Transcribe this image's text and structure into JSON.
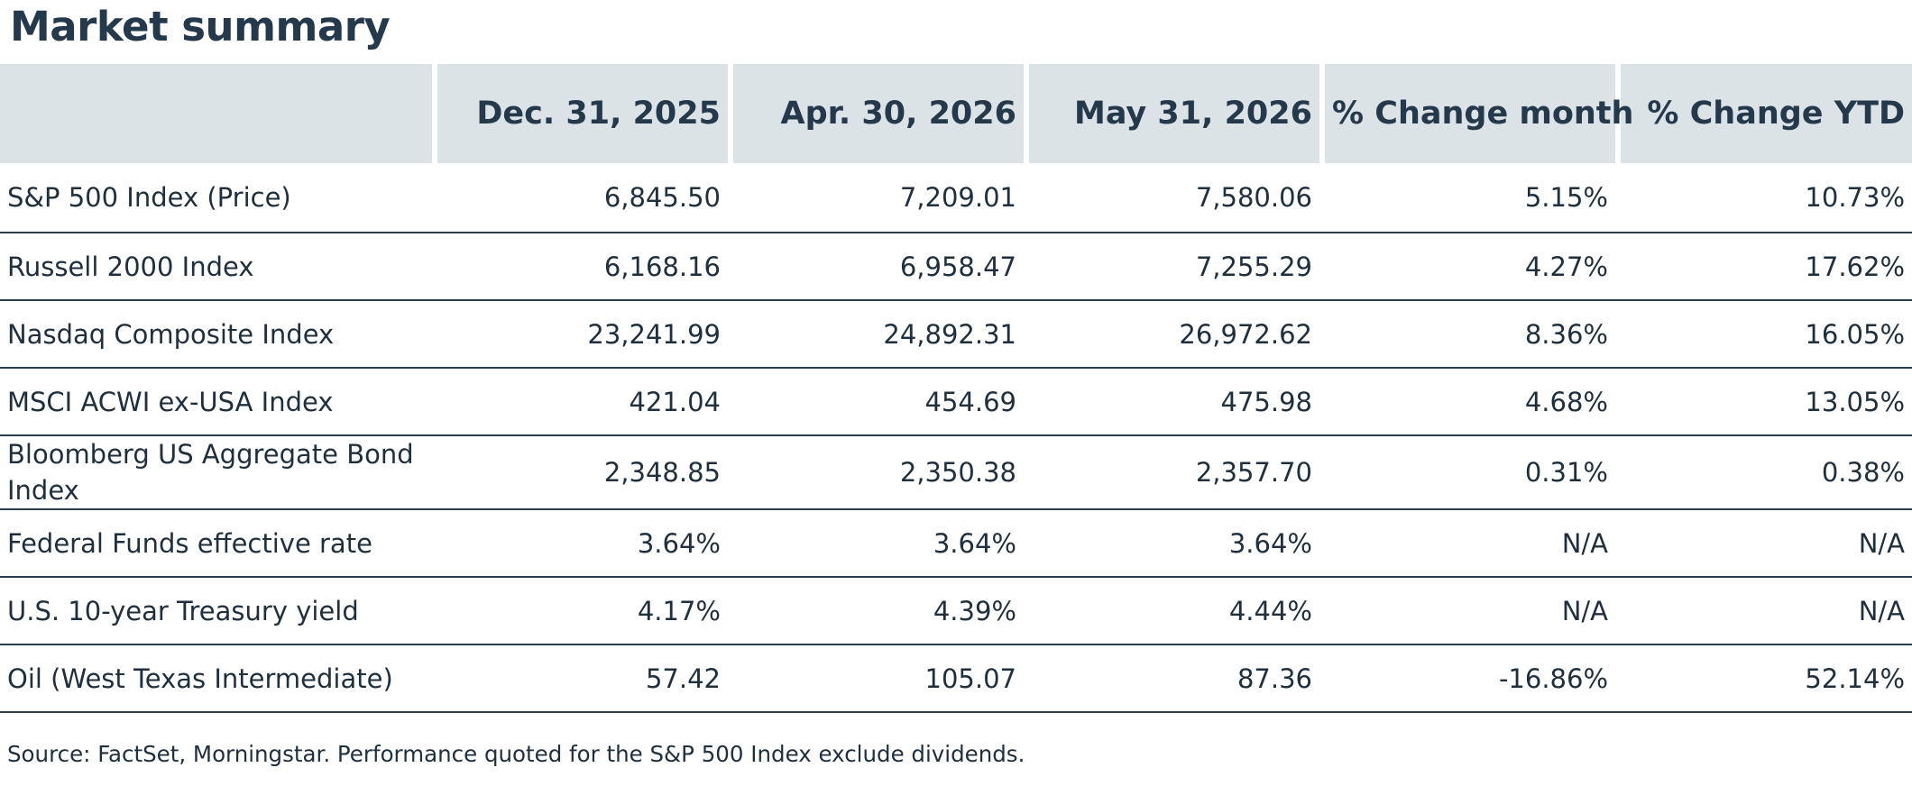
{
  "title": "Market summary",
  "table": {
    "headers": [
      "",
      "Dec. 31, 2025",
      "Apr. 30, 2026",
      "May 31, 2026",
      "% Change month",
      "% Change YTD"
    ],
    "rows": [
      {
        "name": "S&P 500 Index (Price)",
        "values": [
          "6,845.50",
          "7,209.01",
          "7,580.06",
          "5.15%",
          "10.73%"
        ]
      },
      {
        "name": "Russell 2000 Index",
        "values": [
          "6,168.16",
          "6,958.47",
          "7,255.29",
          "4.27%",
          "17.62%"
        ]
      },
      {
        "name": "Nasdaq Composite Index",
        "values": [
          "23,241.99",
          "24,892.31",
          "26,972.62",
          "8.36%",
          "16.05%"
        ]
      },
      {
        "name": "MSCI ACWI ex-USA Index",
        "values": [
          "421.04",
          "454.69",
          "475.98",
          "4.68%",
          "13.05%"
        ]
      },
      {
        "name": "Bloomberg US Aggregate Bond Index",
        "values": [
          "2,348.85",
          "2,350.38",
          "2,357.70",
          "0.31%",
          "0.38%"
        ]
      },
      {
        "name": "Federal Funds effective rate",
        "values": [
          "3.64%",
          "3.64%",
          "3.64%",
          "N/A",
          "N/A"
        ]
      },
      {
        "name": "U.S. 10-year Treasury yield",
        "values": [
          "4.17%",
          "4.39%",
          "4.44%",
          "N/A",
          "N/A"
        ]
      },
      {
        "name": "Oil (West Texas Intermediate)",
        "values": [
          "57.42",
          "105.07",
          "87.36",
          "-16.86%",
          "52.14%"
        ]
      }
    ]
  },
  "source_note": "Source: FactSet, Morningstar. Performance quoted for the S&P 500 Index exclude dividends.",
  "colors": {
    "title": "#24394c",
    "header_bg": "#dce3e6",
    "row_rule": "#2b3d4d",
    "text": "#1f2f3d"
  }
}
